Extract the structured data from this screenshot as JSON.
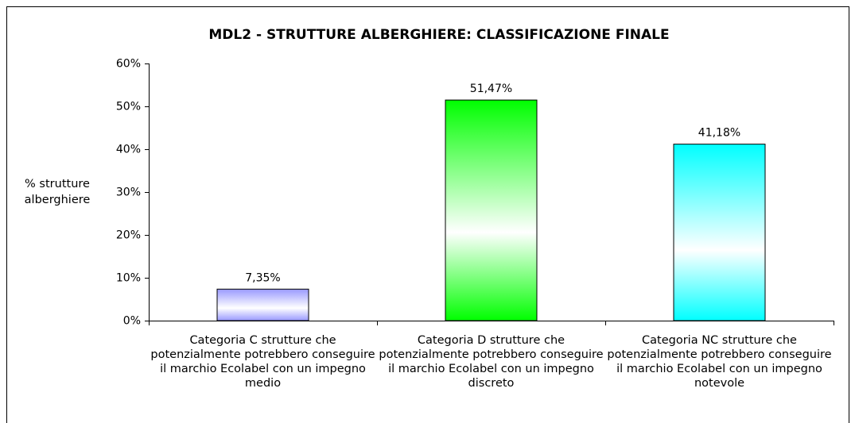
{
  "chart_data": {
    "type": "bar",
    "title": "MDL2 - STRUTTURE ALBERGHIERE: CLASSIFICAZIONE FINALE",
    "ylabel": [
      "% strutture",
      "alberghiere"
    ],
    "categories": [
      "Categoria C strutture che potenzialmente potrebbero conseguire il marchio Ecolabel con un impegno medio",
      "Categoria D strutture che potenzialmente potrebbero conseguire il marchio Ecolabel con un impegno discreto",
      "Categoria NC strutture che potenzialmente potrebbero conseguire il marchio Ecolabel con un impegno notevole"
    ],
    "values": [
      7.35,
      51.47,
      41.18
    ],
    "value_labels": [
      "7,35%",
      "51,47%",
      "41,18%"
    ],
    "colors": [
      "#9999ff",
      "#00ff00",
      "#00ffff"
    ],
    "ylim": [
      0,
      60
    ],
    "yticks": [
      {
        "value": 0,
        "label": "0%"
      },
      {
        "value": 10,
        "label": "10%"
      },
      {
        "value": 20,
        "label": "20%"
      },
      {
        "value": 30,
        "label": "30%"
      },
      {
        "value": 40,
        "label": "40%"
      },
      {
        "value": 50,
        "label": "50%"
      },
      {
        "value": 60,
        "label": "60%"
      }
    ],
    "grid": false
  }
}
